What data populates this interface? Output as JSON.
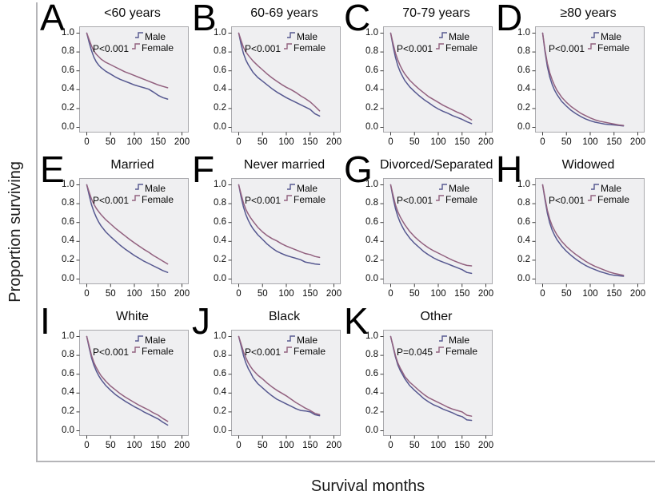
{
  "figure": {
    "y_axis_label": "Proportion surviving",
    "x_axis_label": "Survival months"
  },
  "legend": {
    "male_label": "Male",
    "female_label": "Female"
  },
  "colors": {
    "male": "#565890",
    "female": "#92617f",
    "plot_bg": "#efeff1",
    "plot_border": "#a9a9ad",
    "frame": "#b5b5b8",
    "tick": "#3c3c3c"
  },
  "axes": {
    "x_range": [
      0,
      200
    ],
    "y_range": [
      0,
      1
    ],
    "x_tick_values": [
      0,
      50,
      100,
      150,
      200
    ],
    "x_tick_labels": [
      "0",
      "50",
      "100",
      "150",
      "200"
    ],
    "y_tick_values": [
      1.0,
      0.8,
      0.6,
      0.4,
      0.2,
      0.0
    ],
    "y_tick_labels": [
      "1.0",
      "0.8",
      "0.6",
      "0.4",
      "0.2",
      "0.0"
    ],
    "grid": false,
    "legend_position": "top-right"
  },
  "chart_data": [
    {
      "type": "line",
      "letter": "A",
      "title": "<60 years",
      "p_value": "P<0.001",
      "x": [
        0,
        5,
        10,
        15,
        20,
        25,
        30,
        40,
        50,
        60,
        70,
        80,
        90,
        100,
        110,
        120,
        130,
        140,
        150,
        160,
        170
      ],
      "series": [
        {
          "name": "Male",
          "values": [
            1.0,
            0.9,
            0.815,
            0.745,
            0.695,
            0.66,
            0.635,
            0.595,
            0.565,
            0.535,
            0.51,
            0.49,
            0.47,
            0.45,
            0.435,
            0.42,
            0.405,
            0.375,
            0.34,
            0.315,
            0.3
          ]
        },
        {
          "name": "Female",
          "values": [
            1.0,
            0.93,
            0.865,
            0.81,
            0.775,
            0.75,
            0.725,
            0.69,
            0.665,
            0.64,
            0.615,
            0.59,
            0.57,
            0.55,
            0.53,
            0.51,
            0.49,
            0.47,
            0.45,
            0.435,
            0.42
          ]
        }
      ]
    },
    {
      "type": "line",
      "letter": "B",
      "title": "60-69 years",
      "p_value": "P<0.001",
      "x": [
        0,
        5,
        10,
        15,
        20,
        25,
        30,
        40,
        50,
        60,
        70,
        80,
        90,
        100,
        110,
        120,
        130,
        140,
        150,
        160,
        170
      ],
      "series": [
        {
          "name": "Male",
          "values": [
            1.0,
            0.88,
            0.785,
            0.715,
            0.665,
            0.625,
            0.585,
            0.53,
            0.49,
            0.45,
            0.41,
            0.375,
            0.345,
            0.315,
            0.29,
            0.265,
            0.24,
            0.215,
            0.19,
            0.145,
            0.12
          ]
        },
        {
          "name": "Female",
          "values": [
            1.0,
            0.92,
            0.85,
            0.8,
            0.765,
            0.735,
            0.705,
            0.655,
            0.61,
            0.565,
            0.525,
            0.49,
            0.455,
            0.425,
            0.4,
            0.37,
            0.335,
            0.305,
            0.27,
            0.225,
            0.175
          ]
        }
      ]
    },
    {
      "type": "line",
      "letter": "C",
      "title": "70-79 years",
      "p_value": "P<0.001",
      "x": [
        0,
        5,
        10,
        15,
        20,
        25,
        30,
        40,
        50,
        60,
        70,
        80,
        90,
        100,
        110,
        120,
        130,
        140,
        150,
        160,
        170
      ],
      "series": [
        {
          "name": "Male",
          "values": [
            1.0,
            0.86,
            0.745,
            0.655,
            0.59,
            0.54,
            0.495,
            0.43,
            0.38,
            0.335,
            0.295,
            0.26,
            0.225,
            0.195,
            0.17,
            0.15,
            0.125,
            0.105,
            0.085,
            0.06,
            0.04
          ]
        },
        {
          "name": "Female",
          "values": [
            1.0,
            0.89,
            0.79,
            0.715,
            0.655,
            0.605,
            0.565,
            0.5,
            0.45,
            0.405,
            0.365,
            0.325,
            0.295,
            0.265,
            0.235,
            0.21,
            0.185,
            0.16,
            0.14,
            0.11,
            0.08
          ]
        }
      ]
    },
    {
      "type": "line",
      "letter": "D",
      "title": "≥80 years",
      "p_value": "P<0.001",
      "x": [
        0,
        5,
        10,
        15,
        20,
        25,
        30,
        40,
        50,
        60,
        70,
        80,
        90,
        100,
        110,
        120,
        130,
        140,
        150,
        160,
        170
      ],
      "series": [
        {
          "name": "Male",
          "values": [
            1.0,
            0.8,
            0.645,
            0.535,
            0.455,
            0.395,
            0.35,
            0.275,
            0.225,
            0.18,
            0.145,
            0.115,
            0.09,
            0.07,
            0.055,
            0.045,
            0.035,
            0.03,
            0.025,
            0.02,
            0.015
          ]
        },
        {
          "name": "Female",
          "values": [
            1.0,
            0.82,
            0.68,
            0.58,
            0.505,
            0.445,
            0.395,
            0.32,
            0.265,
            0.22,
            0.185,
            0.15,
            0.125,
            0.1,
            0.08,
            0.065,
            0.055,
            0.045,
            0.035,
            0.025,
            0.02
          ]
        }
      ]
    },
    {
      "type": "line",
      "letter": "E",
      "title": "Married",
      "p_value": "P<0.001",
      "x": [
        0,
        5,
        10,
        15,
        20,
        25,
        30,
        40,
        50,
        60,
        70,
        80,
        90,
        100,
        110,
        120,
        130,
        140,
        150,
        160,
        170
      ],
      "series": [
        {
          "name": "Male",
          "values": [
            1.0,
            0.89,
            0.79,
            0.715,
            0.655,
            0.605,
            0.565,
            0.5,
            0.45,
            0.405,
            0.36,
            0.32,
            0.285,
            0.25,
            0.22,
            0.19,
            0.165,
            0.14,
            0.115,
            0.09,
            0.07
          ]
        },
        {
          "name": "Female",
          "values": [
            1.0,
            0.92,
            0.85,
            0.795,
            0.75,
            0.715,
            0.685,
            0.63,
            0.585,
            0.54,
            0.5,
            0.46,
            0.42,
            0.385,
            0.35,
            0.315,
            0.285,
            0.25,
            0.22,
            0.19,
            0.16
          ]
        }
      ]
    },
    {
      "type": "line",
      "letter": "F",
      "title": "Never married",
      "p_value": "P<0.001",
      "x": [
        0,
        5,
        10,
        15,
        20,
        25,
        30,
        40,
        50,
        60,
        70,
        80,
        90,
        100,
        110,
        120,
        130,
        140,
        150,
        160,
        170
      ],
      "series": [
        {
          "name": "Male",
          "values": [
            1.0,
            0.87,
            0.765,
            0.685,
            0.625,
            0.575,
            0.535,
            0.47,
            0.42,
            0.37,
            0.33,
            0.295,
            0.27,
            0.25,
            0.235,
            0.22,
            0.205,
            0.18,
            0.17,
            0.16,
            0.155
          ]
        },
        {
          "name": "Female",
          "values": [
            1.0,
            0.9,
            0.81,
            0.74,
            0.69,
            0.65,
            0.615,
            0.55,
            0.5,
            0.46,
            0.43,
            0.405,
            0.375,
            0.35,
            0.33,
            0.31,
            0.29,
            0.27,
            0.26,
            0.24,
            0.23
          ]
        }
      ]
    },
    {
      "type": "line",
      "letter": "G",
      "title": "Divorced/Separated",
      "p_value": "P<0.001",
      "x": [
        0,
        5,
        10,
        15,
        20,
        25,
        30,
        40,
        50,
        60,
        70,
        80,
        90,
        100,
        110,
        120,
        130,
        140,
        150,
        160,
        170
      ],
      "series": [
        {
          "name": "Male",
          "values": [
            1.0,
            0.86,
            0.75,
            0.665,
            0.6,
            0.55,
            0.505,
            0.435,
            0.38,
            0.335,
            0.29,
            0.255,
            0.225,
            0.2,
            0.18,
            0.16,
            0.14,
            0.12,
            0.1,
            0.07,
            0.06
          ]
        },
        {
          "name": "Female",
          "values": [
            1.0,
            0.89,
            0.79,
            0.715,
            0.66,
            0.615,
            0.575,
            0.505,
            0.45,
            0.405,
            0.365,
            0.33,
            0.3,
            0.275,
            0.25,
            0.225,
            0.2,
            0.18,
            0.16,
            0.145,
            0.14
          ]
        }
      ]
    },
    {
      "type": "line",
      "letter": "H",
      "title": "Widowed",
      "p_value": "P<0.001",
      "x": [
        0,
        5,
        10,
        15,
        20,
        25,
        30,
        40,
        50,
        60,
        70,
        80,
        90,
        100,
        110,
        120,
        130,
        140,
        150,
        160,
        170
      ],
      "series": [
        {
          "name": "Male",
          "values": [
            1.0,
            0.84,
            0.7,
            0.595,
            0.52,
            0.465,
            0.42,
            0.35,
            0.295,
            0.25,
            0.21,
            0.175,
            0.145,
            0.12,
            0.1,
            0.08,
            0.065,
            0.05,
            0.04,
            0.035,
            0.03
          ]
        },
        {
          "name": "Female",
          "values": [
            1.0,
            0.86,
            0.73,
            0.635,
            0.565,
            0.515,
            0.47,
            0.4,
            0.345,
            0.3,
            0.26,
            0.225,
            0.19,
            0.16,
            0.135,
            0.115,
            0.095,
            0.075,
            0.06,
            0.05,
            0.04
          ]
        }
      ]
    },
    {
      "type": "line",
      "letter": "I",
      "title": "White",
      "p_value": "P<0.001",
      "x": [
        0,
        5,
        10,
        15,
        20,
        25,
        30,
        40,
        50,
        60,
        70,
        80,
        90,
        100,
        110,
        120,
        130,
        140,
        150,
        160,
        170
      ],
      "series": [
        {
          "name": "Male",
          "values": [
            1.0,
            0.88,
            0.775,
            0.695,
            0.635,
            0.585,
            0.545,
            0.48,
            0.43,
            0.385,
            0.35,
            0.315,
            0.285,
            0.255,
            0.23,
            0.2,
            0.175,
            0.15,
            0.125,
            0.09,
            0.06
          ]
        },
        {
          "name": "Female",
          "values": [
            1.0,
            0.9,
            0.8,
            0.725,
            0.67,
            0.625,
            0.585,
            0.525,
            0.475,
            0.435,
            0.395,
            0.36,
            0.33,
            0.3,
            0.27,
            0.245,
            0.22,
            0.19,
            0.165,
            0.13,
            0.1
          ]
        }
      ]
    },
    {
      "type": "line",
      "letter": "J",
      "title": "Black",
      "p_value": "P<0.001",
      "x": [
        0,
        5,
        10,
        15,
        20,
        25,
        30,
        40,
        50,
        60,
        70,
        80,
        90,
        100,
        110,
        120,
        130,
        140,
        150,
        160,
        170
      ],
      "series": [
        {
          "name": "Male",
          "values": [
            1.0,
            0.9,
            0.8,
            0.72,
            0.66,
            0.615,
            0.565,
            0.5,
            0.455,
            0.41,
            0.37,
            0.335,
            0.31,
            0.285,
            0.26,
            0.235,
            0.215,
            0.21,
            0.2,
            0.17,
            0.16
          ]
        },
        {
          "name": "Female",
          "values": [
            1.0,
            0.92,
            0.84,
            0.775,
            0.72,
            0.68,
            0.645,
            0.59,
            0.55,
            0.505,
            0.465,
            0.43,
            0.4,
            0.37,
            0.335,
            0.3,
            0.27,
            0.24,
            0.215,
            0.185,
            0.17
          ]
        }
      ]
    },
    {
      "type": "line",
      "letter": "K",
      "title": "Other",
      "p_value": "P=0.045",
      "x": [
        0,
        5,
        10,
        15,
        20,
        25,
        30,
        40,
        50,
        60,
        70,
        80,
        90,
        100,
        110,
        120,
        130,
        140,
        150,
        160,
        170
      ],
      "series": [
        {
          "name": "Male",
          "values": [
            1.0,
            0.89,
            0.785,
            0.7,
            0.64,
            0.595,
            0.55,
            0.48,
            0.43,
            0.385,
            0.34,
            0.305,
            0.275,
            0.255,
            0.23,
            0.21,
            0.19,
            0.165,
            0.15,
            0.115,
            0.11
          ]
        },
        {
          "name": "Female",
          "values": [
            1.0,
            0.9,
            0.8,
            0.72,
            0.665,
            0.62,
            0.575,
            0.515,
            0.47,
            0.425,
            0.385,
            0.35,
            0.325,
            0.3,
            0.275,
            0.25,
            0.23,
            0.215,
            0.2,
            0.165,
            0.155
          ]
        }
      ]
    }
  ]
}
